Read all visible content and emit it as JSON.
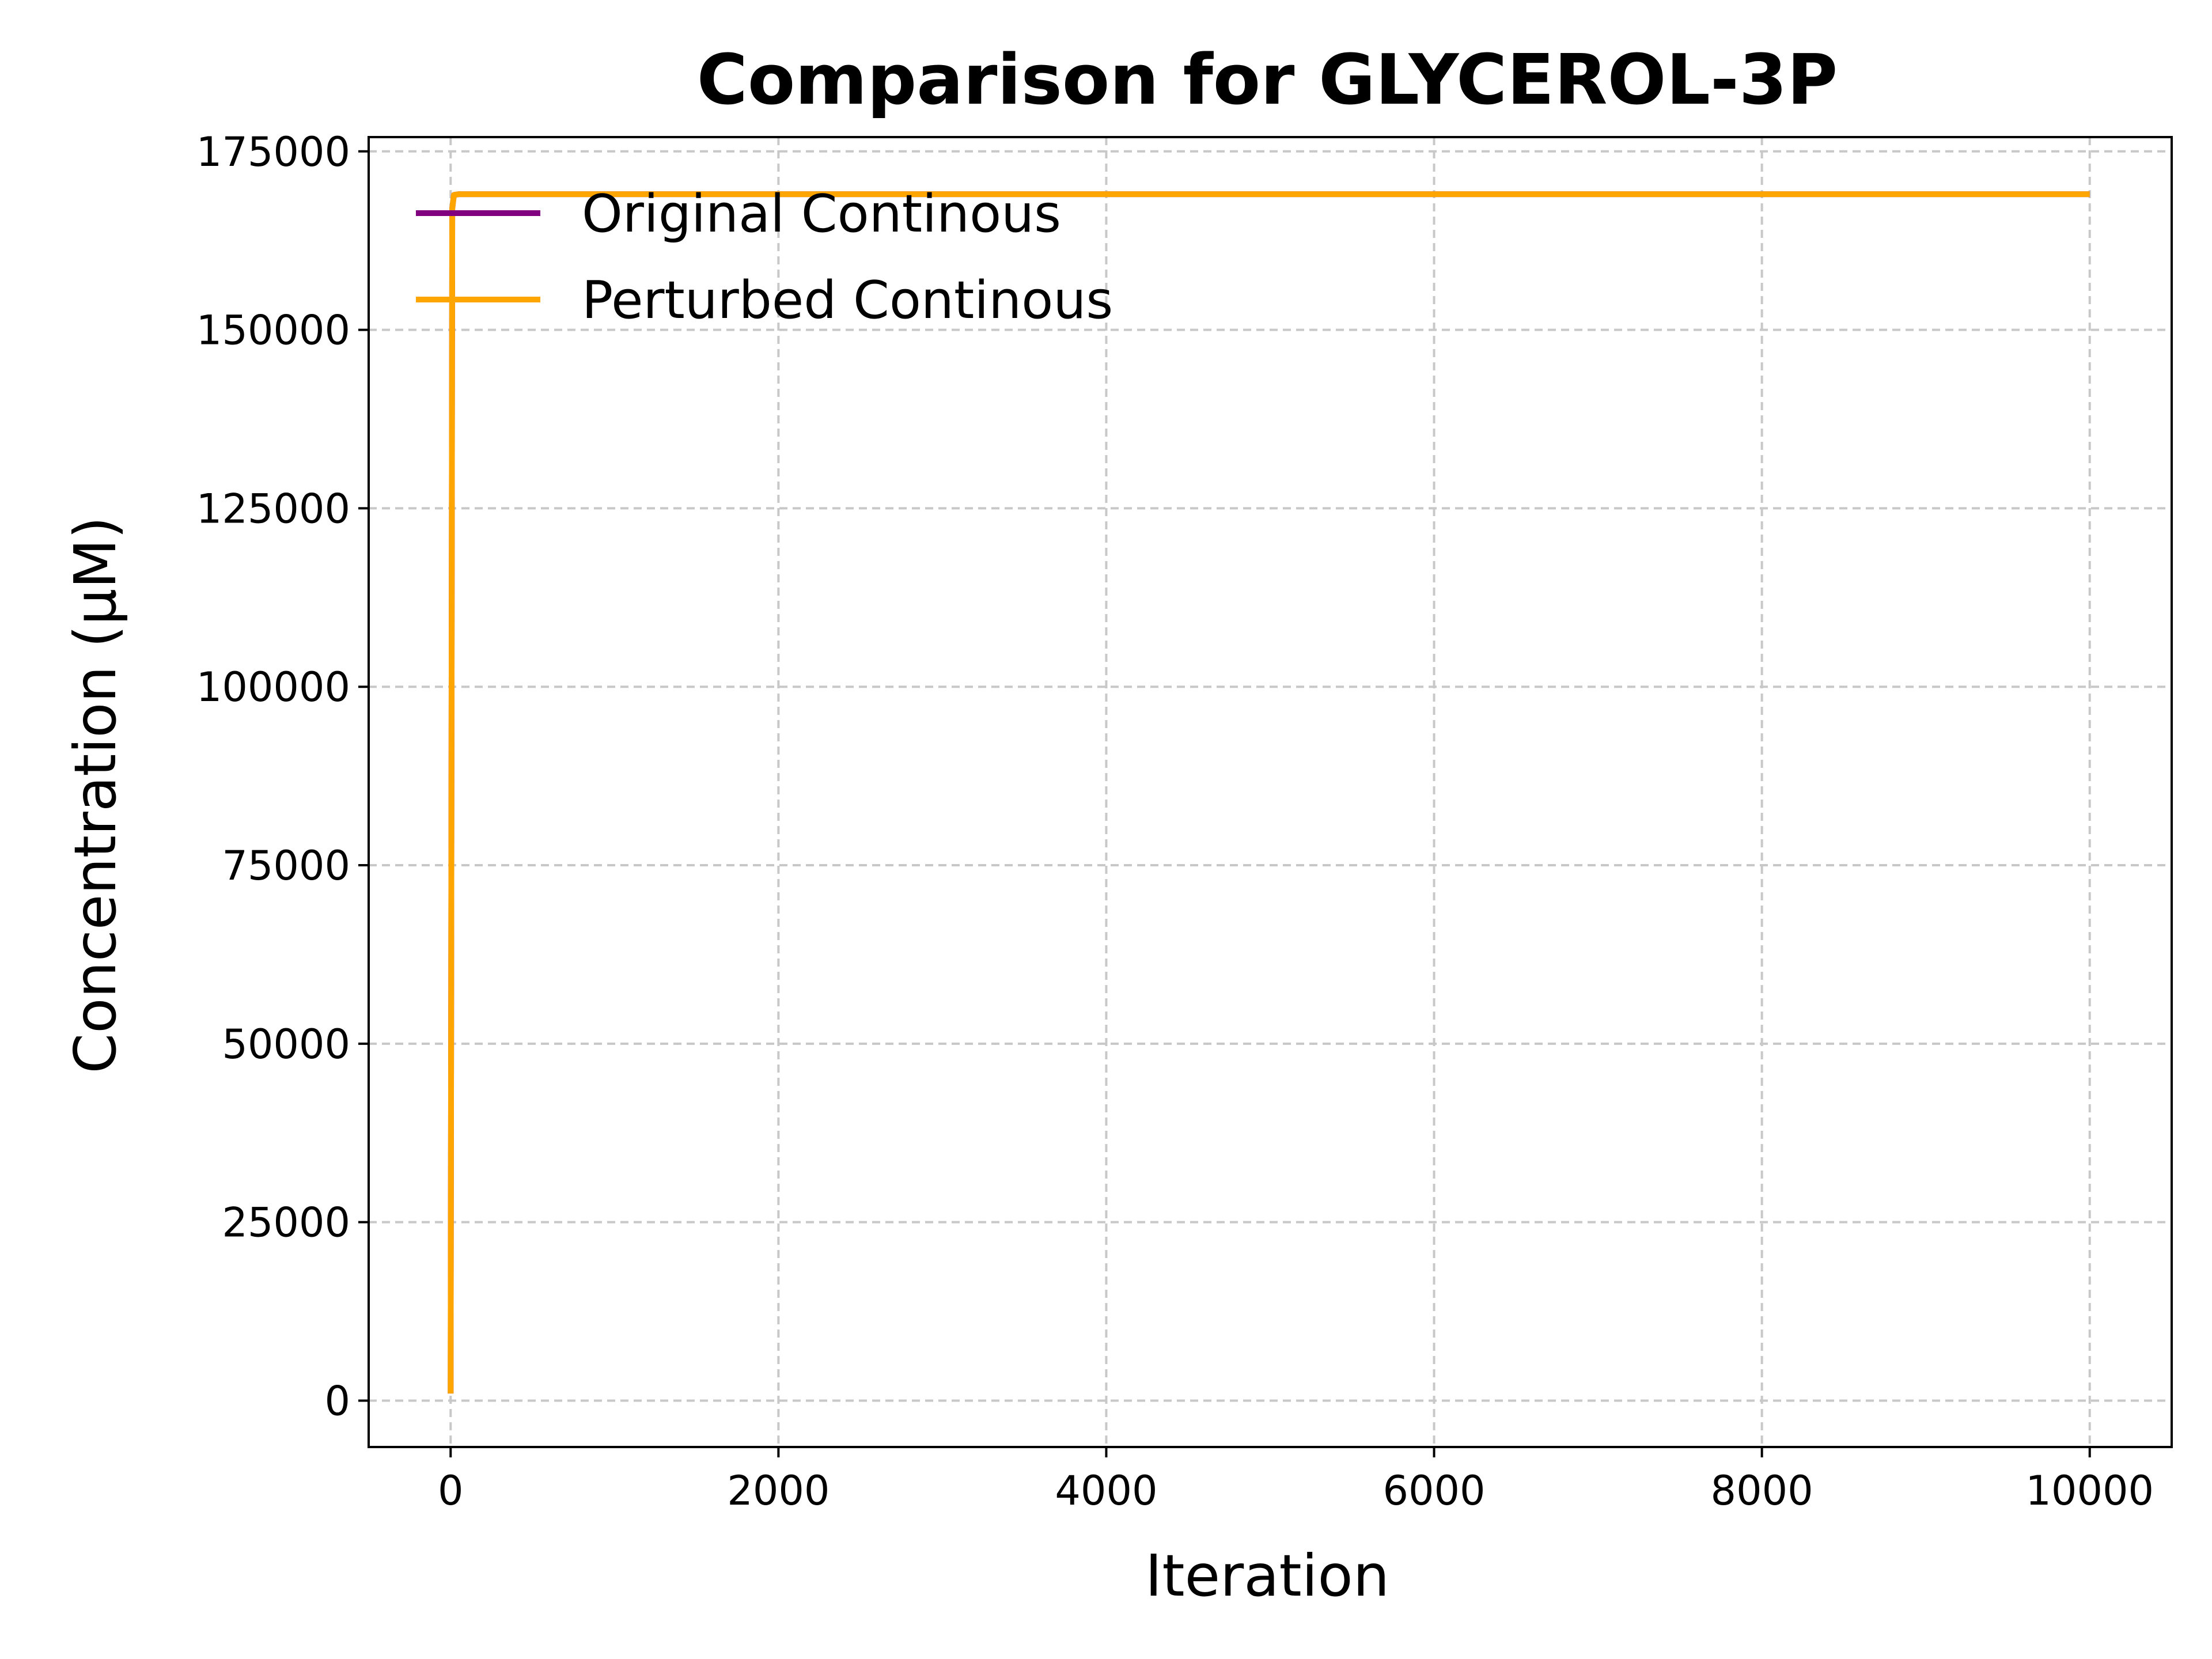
{
  "chart_data": {
    "type": "line",
    "title": "Comparison for GLYCEROL-3P",
    "xlabel": "Iteration",
    "ylabel": "Concentration (μM)",
    "xlim": [
      -500,
      10500
    ],
    "ylim": [
      -6500,
      177000
    ],
    "xticks": [
      0,
      2000,
      4000,
      6000,
      8000,
      10000
    ],
    "xtick_labels": [
      "0",
      "2000",
      "4000",
      "6000",
      "8000",
      "10000"
    ],
    "yticks": [
      0,
      25000,
      50000,
      75000,
      100000,
      125000,
      150000,
      175000
    ],
    "ytick_labels": [
      "0",
      "25000",
      "50000",
      "75000",
      "100000",
      "125000",
      "150000",
      "175000"
    ],
    "grid": true,
    "legend_position": "upper-left",
    "series": [
      {
        "name": "Original Continous",
        "color": "#800080",
        "x": [
          0,
          10,
          20,
          50,
          100,
          10000
        ],
        "y": [
          1000,
          167000,
          168900,
          169000,
          169000,
          169000
        ]
      },
      {
        "name": "Perturbed Continous",
        "color": "#FFA500",
        "x": [
          0,
          10,
          20,
          50,
          100,
          10000
        ],
        "y": [
          1000,
          167000,
          168900,
          169000,
          169000,
          169000
        ]
      }
    ]
  }
}
